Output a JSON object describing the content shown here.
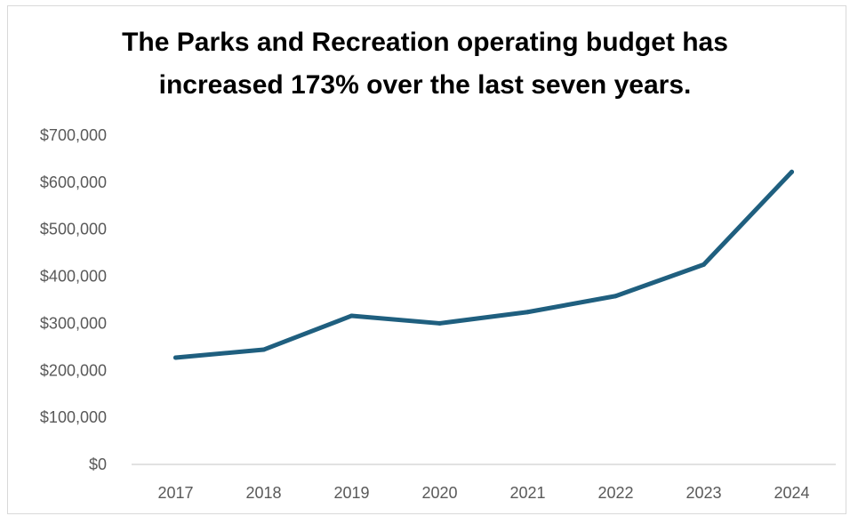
{
  "chart_data": {
    "type": "line",
    "title_lines": [
      "The Parks and Recreation operating budget has",
      "increased 173% over the last seven years."
    ],
    "xlabel": "",
    "ylabel": "",
    "categories": [
      "2017",
      "2018",
      "2019",
      "2020",
      "2021",
      "2022",
      "2023",
      "2024"
    ],
    "series": [
      {
        "values": [
          227000,
          244000,
          316000,
          300000,
          324000,
          358000,
          425000,
          622000
        ]
      }
    ],
    "ylim": [
      0,
      700000
    ],
    "y_ticks": [
      0,
      100000,
      200000,
      300000,
      400000,
      500000,
      600000,
      700000
    ],
    "y_tick_labels": [
      "$0",
      "$100,000",
      "$200,000",
      "$300,000",
      "$400,000",
      "$500,000",
      "$600,000",
      "$700,000"
    ],
    "grid": false,
    "legend": "none",
    "line_color": "#1f5f7f",
    "axis_color": "#d9d9d9",
    "tick_label_color": "#595959"
  }
}
